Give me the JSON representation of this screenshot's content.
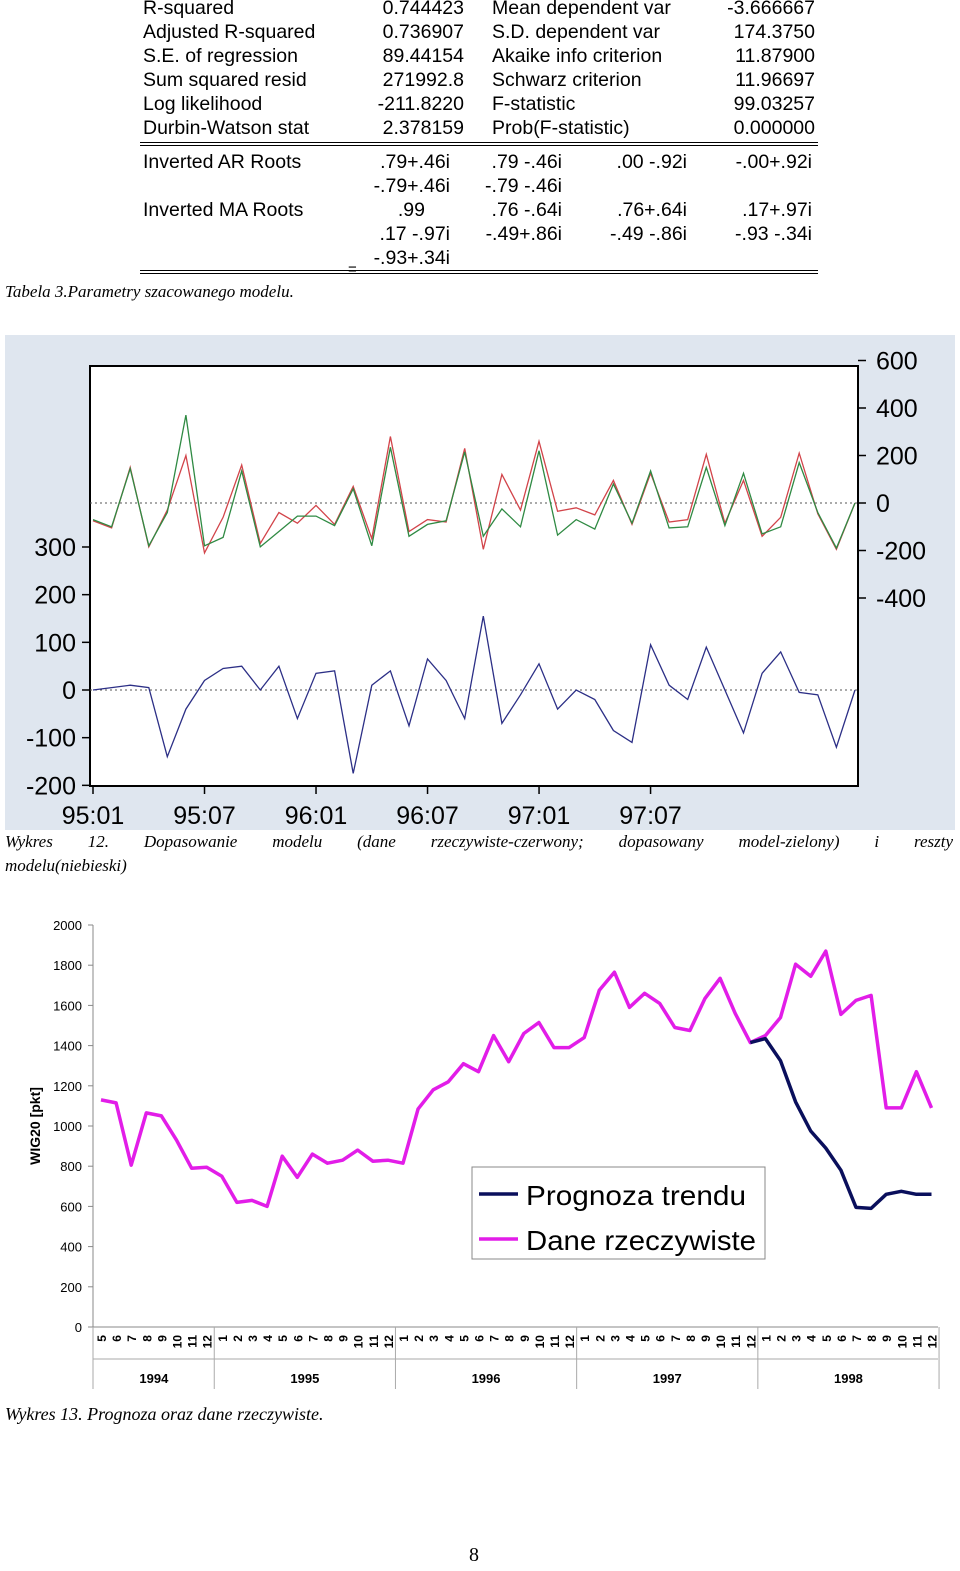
{
  "stats_table": {
    "rows": [
      {
        "l1": "R-squared",
        "v1": "0.744423",
        "l2": "Mean dependent var",
        "v2": "-3.666667"
      },
      {
        "l1": "Adjusted R-squared",
        "v1": "0.736907",
        "l2": "S.D. dependent var",
        "v2": "174.3750"
      },
      {
        "l1": "S.E. of regression",
        "v1": "89.44154",
        "l2": "Akaike info criterion",
        "v2": "11.87900"
      },
      {
        "l1": "Sum squared resid",
        "v1": "271992.8",
        "l2": "Schwarz criterion",
        "v2": "11.96697"
      },
      {
        "l1": "Log likelihood",
        "v1": "-211.8220",
        "l2": "F-statistic",
        "v2": "99.03257"
      },
      {
        "l1": "Durbin-Watson stat",
        "v1": "2.378159",
        "l2": "Prob(F-statistic)",
        "v2": "0.000000"
      }
    ],
    "ar_label": "Inverted AR Roots",
    "ar_roots": [
      ".79+.46i",
      ".79 -.46i",
      ".00 -.92i",
      "-.00+.92i",
      "-.79+.46i",
      "-.79 -.46i"
    ],
    "ma_label": "Inverted MA Roots",
    "ma_roots": [
      ".99",
      ".76 -.64i",
      ".76+.64i",
      ".17+.97i",
      ".17 -.97i",
      "-.49+.86i",
      "-.49 -.86i",
      "-.93 -.34i",
      "-.93+.34i"
    ],
    "stray_mark": "="
  },
  "captions": {
    "table3": "Tabela 3.Parametry szacowanego modelu.",
    "chart12_line1": [
      "Wykres",
      "12.",
      "Dopasowanie",
      "modelu",
      "(dane",
      "rzeczywiste-czerwony;",
      "dopasowany",
      "model-zielony)",
      "i",
      "reszty"
    ],
    "chart12_line2": "modelu(niebieski)",
    "chart13": "Wykres 13. Prognoza oraz dane rzeczywiste."
  },
  "page_number": "8",
  "colors": {
    "actual": "#d2444a",
    "fitted": "#2f8a43",
    "residual": "#2c2f86",
    "forecast": "#0a0f5c",
    "real": "#e21de8",
    "panel": "#dfe6ef"
  },
  "chart_data": [
    {
      "type": "line",
      "title": "",
      "x_ticks": [
        "95:01",
        "95:07",
        "96:01",
        "96:07",
        "97:01",
        "97:07"
      ],
      "y_left_ticks": [
        300,
        200,
        100,
        0,
        -100,
        -200
      ],
      "y_right_ticks": [
        600,
        400,
        200,
        0,
        -200,
        -400
      ],
      "y_left_range": [
        -200,
        300
      ],
      "y_right_range": [
        -400,
        600
      ],
      "grid": "dotted horizontal at 0",
      "series": [
        {
          "key": "actual",
          "axis": "right",
          "values": [
            -75,
            -105,
            150,
            -185,
            -30,
            200,
            -210,
            -60,
            160,
            -170,
            -40,
            -85,
            -10,
            -90,
            70,
            -150,
            280,
            -120,
            -70,
            -80,
            230,
            -195,
            120,
            -30,
            260,
            -35,
            -20,
            -50,
            95,
            -90,
            125,
            -80,
            -70,
            205,
            -85,
            95,
            -140,
            -60,
            210,
            -45,
            -195,
            0
          ]
        },
        {
          "key": "fitted",
          "axis": "right",
          "values": [
            -70,
            -100,
            145,
            -180,
            -40,
            370,
            -180,
            -145,
            135,
            -185,
            -120,
            -55,
            -55,
            -95,
            60,
            -180,
            235,
            -140,
            -90,
            -75,
            215,
            -140,
            -25,
            -100,
            220,
            -135,
            -70,
            -110,
            80,
            -85,
            135,
            -105,
            -100,
            150,
            -95,
            125,
            -130,
            -100,
            170,
            -40,
            -190,
            0
          ]
        },
        {
          "key": "residual",
          "axis": "left",
          "values": [
            0,
            5,
            10,
            5,
            -140,
            -40,
            20,
            45,
            50,
            0,
            50,
            -60,
            35,
            40,
            -175,
            10,
            40,
            -75,
            65,
            20,
            -60,
            155,
            -70,
            -10,
            55,
            -40,
            0,
            -20,
            -85,
            -110,
            95,
            10,
            -20,
            90,
            0,
            -90,
            35,
            80,
            -5,
            -10,
            -120,
            0
          ]
        }
      ]
    },
    {
      "type": "line",
      "title": "",
      "ylabel": "WIG20 [pkt]",
      "y_ticks": [
        "2000",
        "1800",
        "1600",
        "1400",
        "1200",
        "1000",
        "800",
        "600",
        "400",
        "200",
        "0"
      ],
      "ylim": [
        0,
        2000
      ],
      "x_month_labels": [
        "5",
        "6",
        "7",
        "8",
        "9",
        "10",
        "11",
        "12",
        "1",
        "2",
        "3",
        "4",
        "5",
        "6",
        "7",
        "8",
        "9",
        "10",
        "11",
        "12",
        "1",
        "2",
        "3",
        "4",
        "5",
        "6",
        "7",
        "8",
        "9",
        "10",
        "11",
        "12",
        "1",
        "2",
        "3",
        "4",
        "5",
        "6",
        "7",
        "8",
        "9",
        "10",
        "11",
        "12",
        "1",
        "2",
        "3",
        "4",
        "5",
        "6",
        "7",
        "8",
        "9",
        "10",
        "11",
        "12"
      ],
      "x_year_labels": [
        "1994",
        "1995",
        "1996",
        "1997",
        "1998"
      ],
      "year_spans": [
        [
          0,
          8
        ],
        [
          8,
          20
        ],
        [
          20,
          32
        ],
        [
          32,
          44
        ],
        [
          44,
          56
        ]
      ],
      "legend": {
        "position": "lower-right",
        "entries": [
          "Prognoza trendu",
          "Dane rzeczywiste"
        ]
      },
      "series": [
        {
          "name": "Dane rzeczywiste",
          "key": "real",
          "values": [
            1130,
            1115,
            805,
            1065,
            1050,
            930,
            790,
            795,
            750,
            620,
            630,
            600,
            850,
            745,
            860,
            815,
            830,
            880,
            825,
            830,
            815,
            1085,
            1180,
            1220,
            1310,
            1270,
            1450,
            1320,
            1460,
            1515,
            1390,
            1390,
            1440,
            1675,
            1765,
            1590,
            1660,
            1610,
            1490,
            1475,
            1635,
            1735,
            1560,
            1415,
            1450,
            1540,
            1805,
            1745,
            1870,
            1555,
            1625,
            1650,
            1090,
            1090,
            1270,
            1090
          ]
        },
        {
          "name": "Prognoza trendu",
          "key": "forecast",
          "start_index": 43,
          "values": [
            1415,
            1435,
            1325,
            1120,
            975,
            890,
            780,
            595,
            590,
            660,
            675,
            660,
            660
          ]
        }
      ]
    }
  ]
}
